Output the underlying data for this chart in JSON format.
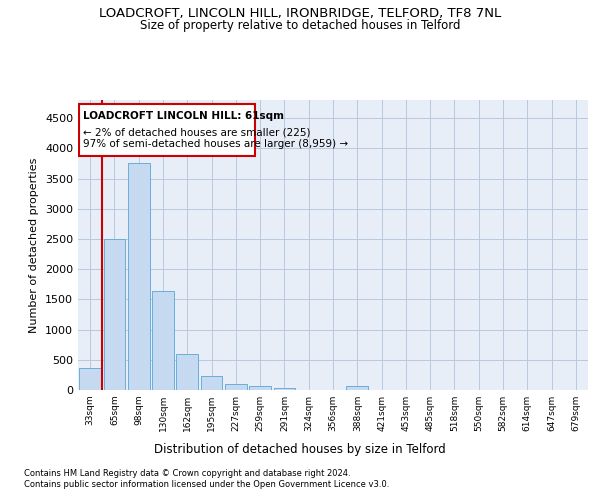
{
  "title_line1": "LOADCROFT, LINCOLN HILL, IRONBRIDGE, TELFORD, TF8 7NL",
  "title_line2": "Size of property relative to detached houses in Telford",
  "xlabel": "Distribution of detached houses by size in Telford",
  "ylabel": "Number of detached properties",
  "categories": [
    "33sqm",
    "65sqm",
    "98sqm",
    "130sqm",
    "162sqm",
    "195sqm",
    "227sqm",
    "259sqm",
    "291sqm",
    "324sqm",
    "356sqm",
    "388sqm",
    "421sqm",
    "453sqm",
    "485sqm",
    "518sqm",
    "550sqm",
    "582sqm",
    "614sqm",
    "647sqm",
    "679sqm"
  ],
  "values": [
    370,
    2500,
    3750,
    1640,
    590,
    230,
    100,
    60,
    40,
    0,
    0,
    60,
    0,
    0,
    0,
    0,
    0,
    0,
    0,
    0,
    0
  ],
  "bar_color": "#c5d9f0",
  "bar_edge_color": "#6aaed6",
  "highlight_color": "#cc0000",
  "annotation_title": "LOADCROFT LINCOLN HILL: 61sqm",
  "annotation_line1": "← 2% of detached houses are smaller (225)",
  "annotation_line2": "97% of semi-detached houses are larger (8,959) →",
  "annotation_box_color": "#cc0000",
  "ylim": [
    0,
    4800
  ],
  "yticks": [
    0,
    500,
    1000,
    1500,
    2000,
    2500,
    3000,
    3500,
    4000,
    4500
  ],
  "footer_line1": "Contains HM Land Registry data © Crown copyright and database right 2024.",
  "footer_line2": "Contains public sector information licensed under the Open Government Licence v3.0.",
  "background_color": "#e8eef8",
  "grid_color": "#b8c8e0",
  "title_fontsize": 9.5,
  "subtitle_fontsize": 8.5,
  "bar_width": 0.9
}
